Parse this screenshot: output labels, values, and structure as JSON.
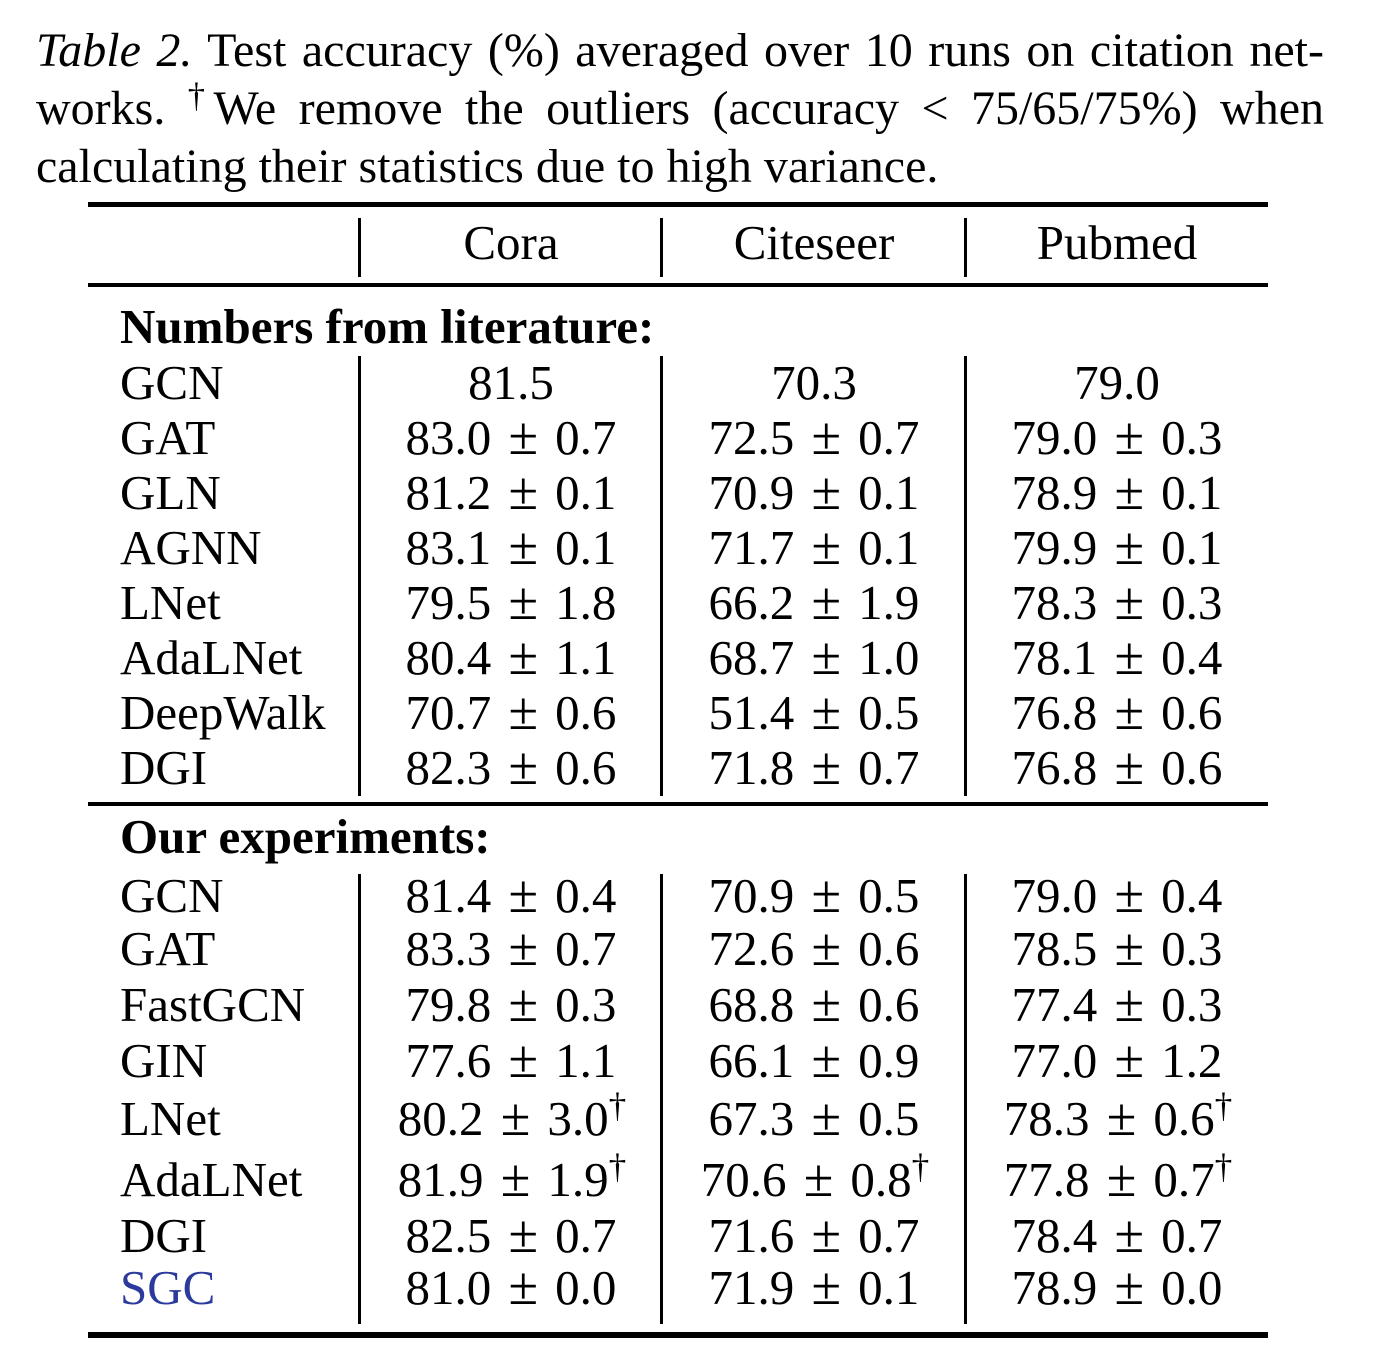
{
  "caption": {
    "line1_italic": "Table 2.",
    "line1_rest": " Test accuracy (%) averaged over 10 runs on citation net-",
    "line2_a": "works. ",
    "line2_dagger": "†",
    "line2_b": "We remove the outliers (accuracy < 75/65/75%) when",
    "line3": "calculating their statistics due to high variance."
  },
  "table": {
    "columns": [
      "Cora",
      "Citeseer",
      "Pubmed"
    ],
    "sections": [
      {
        "title": "Numbers from literature:",
        "rows": [
          {
            "label": "GCN",
            "cells": [
              {
                "text": "81.5"
              },
              {
                "text": "70.3"
              },
              {
                "text": "79.0"
              }
            ]
          },
          {
            "label": "GAT",
            "cells": [
              {
                "text": "83.0 ± 0.7"
              },
              {
                "text": "72.5 ± 0.7"
              },
              {
                "text": "79.0 ± 0.3"
              }
            ]
          },
          {
            "label": "GLN",
            "cells": [
              {
                "text": "81.2 ± 0.1"
              },
              {
                "text": "70.9 ± 0.1"
              },
              {
                "text": "78.9 ± 0.1"
              }
            ]
          },
          {
            "label": "AGNN",
            "cells": [
              {
                "text": "83.1 ± 0.1"
              },
              {
                "text": "71.7 ± 0.1"
              },
              {
                "text": "79.9 ± 0.1"
              }
            ]
          },
          {
            "label": "LNet",
            "cells": [
              {
                "text": "79.5 ± 1.8"
              },
              {
                "text": "66.2 ± 1.9"
              },
              {
                "text": "78.3 ± 0.3"
              }
            ]
          },
          {
            "label": "AdaLNet",
            "cells": [
              {
                "text": "80.4 ± 1.1"
              },
              {
                "text": "68.7 ± 1.0"
              },
              {
                "text": "78.1 ± 0.4"
              }
            ]
          },
          {
            "label": "DeepWalk",
            "cells": [
              {
                "text": "70.7 ± 0.6"
              },
              {
                "text": "51.4 ± 0.5"
              },
              {
                "text": "76.8 ± 0.6"
              }
            ]
          },
          {
            "label": "DGI",
            "cells": [
              {
                "text": "82.3 ± 0.6"
              },
              {
                "text": "71.8 ± 0.7"
              },
              {
                "text": "76.8 ± 0.6"
              }
            ]
          }
        ]
      },
      {
        "title": "Our experiments:",
        "rows": [
          {
            "label": "GCN",
            "cells": [
              {
                "text": "81.4 ± 0.4"
              },
              {
                "text": "70.9 ± 0.5"
              },
              {
                "text": "79.0 ± 0.4"
              }
            ]
          },
          {
            "label": "GAT",
            "cells": [
              {
                "text": "83.3 ± 0.7"
              },
              {
                "text": "72.6 ± 0.6"
              },
              {
                "text": "78.5 ± 0.3"
              }
            ]
          },
          {
            "label": "FastGCN",
            "cells": [
              {
                "text": "79.8 ± 0.3"
              },
              {
                "text": "68.8 ± 0.6"
              },
              {
                "text": "77.4 ± 0.3"
              }
            ]
          },
          {
            "label": "GIN",
            "cells": [
              {
                "text": "77.6 ± 1.1"
              },
              {
                "text": "66.1 ± 0.9"
              },
              {
                "text": "77.0 ± 1.2"
              }
            ]
          },
          {
            "label": "LNet",
            "cells": [
              {
                "text": "80.2 ± 3.0",
                "sup": "†"
              },
              {
                "text": "67.3 ± 0.5"
              },
              {
                "text": "78.3 ± 0.6",
                "sup": "†"
              }
            ]
          },
          {
            "label": "AdaLNet",
            "cells": [
              {
                "text": "81.9 ± 1.9",
                "sup": "†"
              },
              {
                "text": "70.6 ± 0.8",
                "sup": "†"
              },
              {
                "text": "77.8 ± 0.7",
                "sup": "†"
              }
            ]
          },
          {
            "label": "DGI",
            "cells": [
              {
                "text": "82.5 ± 0.7"
              },
              {
                "text": "71.6 ± 0.7"
              },
              {
                "text": "78.4 ± 0.7"
              }
            ]
          },
          {
            "label": "SGC",
            "highlight": true,
            "cells": [
              {
                "text": "81.0 ± 0.0"
              },
              {
                "text": "71.9 ± 0.1"
              },
              {
                "text": "78.9 ± 0.0"
              }
            ]
          }
        ]
      }
    ]
  },
  "colors": {
    "sgc_blue": "#2b3a9c"
  }
}
